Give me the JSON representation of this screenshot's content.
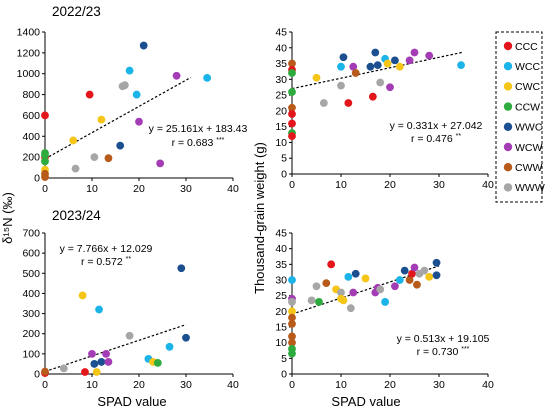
{
  "figure": {
    "y_label_left": "δ¹⁵N (‰)",
    "y_label_right": "Thousand-grain weight (g)",
    "x_label": "SPAD value"
  },
  "legend": [
    {
      "label": "CCC",
      "color": "#e3161c"
    },
    {
      "label": "WCC",
      "color": "#1ab4e8"
    },
    {
      "label": "CWC",
      "color": "#f5c518"
    },
    {
      "label": "CCW",
      "color": "#2eab3e"
    },
    {
      "label": "WWC",
      "color": "#1b4f8f"
    },
    {
      "label": "WCW",
      "color": "#a43db5"
    },
    {
      "label": "CWW",
      "color": "#b85a1a"
    },
    {
      "label": "WWW",
      "color": "#a6a6a6"
    }
  ],
  "chart_data": [
    {
      "id": "p1",
      "type": "scatter",
      "year_label": "2022/23",
      "xlim": [
        0,
        40
      ],
      "ylim": [
        0,
        1400
      ],
      "xticks": [
        0,
        10,
        20,
        30,
        40
      ],
      "yticks": [
        0,
        200,
        400,
        600,
        800,
        1000,
        1200,
        1400
      ],
      "equation": "y = 25.161x + 183.43",
      "r_text": "r = 0.683",
      "significance": "***",
      "trend_x": [
        0,
        31
      ],
      "points": [
        {
          "x": 0,
          "y": 600,
          "group": "CCC"
        },
        {
          "x": 0,
          "y": 200,
          "group": "CCC"
        },
        {
          "x": 0,
          "y": 240,
          "group": "CCW"
        },
        {
          "x": 0,
          "y": 220,
          "group": "CCW"
        },
        {
          "x": 0,
          "y": 160,
          "group": "CCW"
        },
        {
          "x": 0,
          "y": 80,
          "group": "CWC"
        },
        {
          "x": 0,
          "y": 40,
          "group": "CWW"
        },
        {
          "x": 0,
          "y": 10,
          "group": "CWW"
        },
        {
          "x": 6.5,
          "y": 90,
          "group": "WWW"
        },
        {
          "x": 6,
          "y": 360,
          "group": "CWC"
        },
        {
          "x": 9.5,
          "y": 800,
          "group": "CCC"
        },
        {
          "x": 10.5,
          "y": 200,
          "group": "WWW"
        },
        {
          "x": 12,
          "y": 560,
          "group": "CWC"
        },
        {
          "x": 13.5,
          "y": 190,
          "group": "CWW"
        },
        {
          "x": 16,
          "y": 310,
          "group": "WWC"
        },
        {
          "x": 16.5,
          "y": 880,
          "group": "WWW"
        },
        {
          "x": 17,
          "y": 890,
          "group": "WWW"
        },
        {
          "x": 18,
          "y": 1030,
          "group": "WCC"
        },
        {
          "x": 19.5,
          "y": 800,
          "group": "WCC"
        },
        {
          "x": 20,
          "y": 540,
          "group": "WCW"
        },
        {
          "x": 21,
          "y": 1270,
          "group": "WWC"
        },
        {
          "x": 24.5,
          "y": 140,
          "group": "WCW"
        },
        {
          "x": 28,
          "y": 980,
          "group": "WCW"
        },
        {
          "x": 34.5,
          "y": 960,
          "group": "WCC"
        }
      ]
    },
    {
      "id": "p2",
      "type": "scatter",
      "year_label": "",
      "xlim": [
        0,
        40
      ],
      "ylim": [
        0,
        45
      ],
      "xticks": [
        0,
        10,
        20,
        30,
        40
      ],
      "yticks": [
        0,
        5,
        10,
        15,
        20,
        25,
        30,
        35,
        40,
        45
      ],
      "equation": "y = 0.331x + 27.042",
      "r_text": "r = 0.476",
      "significance": "**",
      "trend_x": [
        0,
        35
      ],
      "points": [
        {
          "x": 0,
          "y": 35,
          "group": "CWW"
        },
        {
          "x": 0,
          "y": 33,
          "group": "CCC"
        },
        {
          "x": 0,
          "y": 32,
          "group": "CCW"
        },
        {
          "x": 0,
          "y": 26,
          "group": "CCW"
        },
        {
          "x": 0,
          "y": 21,
          "group": "CWW"
        },
        {
          "x": 0,
          "y": 19,
          "group": "CCC"
        },
        {
          "x": 0,
          "y": 16,
          "group": "CCC"
        },
        {
          "x": 0,
          "y": 13,
          "group": "CCW"
        },
        {
          "x": 0,
          "y": 12,
          "group": "CCC"
        },
        {
          "x": 5,
          "y": 30.5,
          "group": "CWC"
        },
        {
          "x": 6.5,
          "y": 22.5,
          "group": "WWW"
        },
        {
          "x": 10,
          "y": 34,
          "group": "WCC"
        },
        {
          "x": 10,
          "y": 28,
          "group": "WWW"
        },
        {
          "x": 10.5,
          "y": 37,
          "group": "WWC"
        },
        {
          "x": 11.5,
          "y": 22.5,
          "group": "CCC"
        },
        {
          "x": 12.5,
          "y": 34,
          "group": "WCW"
        },
        {
          "x": 13,
          "y": 32,
          "group": "CWW"
        },
        {
          "x": 16,
          "y": 34,
          "group": "WWC"
        },
        {
          "x": 16.5,
          "y": 24.5,
          "group": "CCC"
        },
        {
          "x": 17,
          "y": 38.5,
          "group": "WWC"
        },
        {
          "x": 17.5,
          "y": 34.5,
          "group": "WWC"
        },
        {
          "x": 18,
          "y": 29,
          "group": "WWW"
        },
        {
          "x": 19,
          "y": 36.5,
          "group": "WCC"
        },
        {
          "x": 19.5,
          "y": 35,
          "group": "CWC"
        },
        {
          "x": 20,
          "y": 27.5,
          "group": "WCW"
        },
        {
          "x": 21,
          "y": 36,
          "group": "WWC"
        },
        {
          "x": 22,
          "y": 34,
          "group": "CWC"
        },
        {
          "x": 24,
          "y": 36,
          "group": "WCW"
        },
        {
          "x": 25,
          "y": 38.5,
          "group": "WCW"
        },
        {
          "x": 28,
          "y": 37.5,
          "group": "WCW"
        },
        {
          "x": 34.5,
          "y": 34.5,
          "group": "WCC"
        }
      ]
    },
    {
      "id": "p3",
      "type": "scatter",
      "year_label": "2023/24",
      "xlim": [
        0,
        40
      ],
      "ylim": [
        0,
        700
      ],
      "xticks": [
        0,
        10,
        20,
        30,
        40
      ],
      "yticks": [
        0,
        100,
        200,
        300,
        400,
        500,
        600,
        700
      ],
      "equation": "y = 7.766x + 12.029",
      "r_text": "r = 0.572",
      "significance": "**",
      "trend_x": [
        0,
        30
      ],
      "points": [
        {
          "x": 0,
          "y": 5,
          "group": "CCC"
        },
        {
          "x": 0,
          "y": 12,
          "group": "CWW"
        },
        {
          "x": 4,
          "y": 28,
          "group": "WWW"
        },
        {
          "x": 8,
          "y": 390,
          "group": "CWC"
        },
        {
          "x": 8.5,
          "y": 10,
          "group": "CCC"
        },
        {
          "x": 10,
          "y": 100,
          "group": "WCW"
        },
        {
          "x": 10.5,
          "y": 50,
          "group": "WWC"
        },
        {
          "x": 11,
          "y": 10,
          "group": "CWC"
        },
        {
          "x": 11.5,
          "y": 320,
          "group": "WCC"
        },
        {
          "x": 12,
          "y": 60,
          "group": "WWC"
        },
        {
          "x": 13,
          "y": 100,
          "group": "WCW"
        },
        {
          "x": 13.5,
          "y": 60,
          "group": "WCW"
        },
        {
          "x": 18,
          "y": 190,
          "group": "WWW"
        },
        {
          "x": 22,
          "y": 75,
          "group": "WCC"
        },
        {
          "x": 23,
          "y": 60,
          "group": "CWC"
        },
        {
          "x": 24,
          "y": 55,
          "group": "CCW"
        },
        {
          "x": 26.5,
          "y": 135,
          "group": "WCC"
        },
        {
          "x": 29,
          "y": 525,
          "group": "WWC"
        },
        {
          "x": 30,
          "y": 180,
          "group": "WWC"
        }
      ]
    },
    {
      "id": "p4",
      "type": "scatter",
      "year_label": "",
      "xlim": [
        0,
        40
      ],
      "ylim": [
        0,
        45
      ],
      "xticks": [
        0,
        10,
        20,
        30,
        40
      ],
      "yticks": [
        0,
        5,
        10,
        15,
        20,
        25,
        30,
        35,
        40,
        45
      ],
      "equation": "y = 0.513x + 19.105",
      "r_text": "r = 0.730",
      "significance": "***",
      "trend_x": [
        0,
        30
      ],
      "points": [
        {
          "x": 0,
          "y": 30,
          "group": "WCC"
        },
        {
          "x": 0,
          "y": 24,
          "group": "WCW"
        },
        {
          "x": 0,
          "y": 23,
          "group": "WWW"
        },
        {
          "x": 0,
          "y": 20,
          "group": "CWC"
        },
        {
          "x": 0,
          "y": 18,
          "group": "CWW"
        },
        {
          "x": 0,
          "y": 16,
          "group": "CWW"
        },
        {
          "x": 0,
          "y": 12,
          "group": "CWW"
        },
        {
          "x": 0,
          "y": 10,
          "group": "CWW"
        },
        {
          "x": 0,
          "y": 8,
          "group": "CCW"
        },
        {
          "x": 0,
          "y": 6.5,
          "group": "CCW"
        },
        {
          "x": 4,
          "y": 23.5,
          "group": "WWW"
        },
        {
          "x": 5,
          "y": 28,
          "group": "WWW"
        },
        {
          "x": 5.5,
          "y": 23,
          "group": "CCW"
        },
        {
          "x": 7,
          "y": 29,
          "group": "CWW"
        },
        {
          "x": 8,
          "y": 35,
          "group": "CCC"
        },
        {
          "x": 9,
          "y": 27,
          "group": "CWC"
        },
        {
          "x": 10,
          "y": 26,
          "group": "WWW"
        },
        {
          "x": 10,
          "y": 24,
          "group": "CWC"
        },
        {
          "x": 10.5,
          "y": 23.5,
          "group": "CWC"
        },
        {
          "x": 11.5,
          "y": 31,
          "group": "WCC"
        },
        {
          "x": 12,
          "y": 21,
          "group": "WWW"
        },
        {
          "x": 12.5,
          "y": 26,
          "group": "WCW"
        },
        {
          "x": 13,
          "y": 32,
          "group": "WWC"
        },
        {
          "x": 15,
          "y": 30.5,
          "group": "CWC"
        },
        {
          "x": 17,
          "y": 26,
          "group": "WCW"
        },
        {
          "x": 17.5,
          "y": 27.5,
          "group": "WCW"
        },
        {
          "x": 18,
          "y": 27,
          "group": "WWW"
        },
        {
          "x": 19,
          "y": 23,
          "group": "WCC"
        },
        {
          "x": 21,
          "y": 28,
          "group": "WCW"
        },
        {
          "x": 22,
          "y": 30,
          "group": "WCC"
        },
        {
          "x": 23,
          "y": 33,
          "group": "WWC"
        },
        {
          "x": 24,
          "y": 30,
          "group": "CWW"
        },
        {
          "x": 24.5,
          "y": 32,
          "group": "CCC"
        },
        {
          "x": 25,
          "y": 34,
          "group": "WCW"
        },
        {
          "x": 25.5,
          "y": 28.5,
          "group": "CWW"
        },
        {
          "x": 26,
          "y": 32,
          "group": "WWW"
        },
        {
          "x": 27,
          "y": 33,
          "group": "WWW"
        },
        {
          "x": 28,
          "y": 31,
          "group": "CWC"
        },
        {
          "x": 29.5,
          "y": 31.5,
          "group": "WWC"
        },
        {
          "x": 29.5,
          "y": 35.5,
          "group": "WWC"
        }
      ]
    }
  ]
}
